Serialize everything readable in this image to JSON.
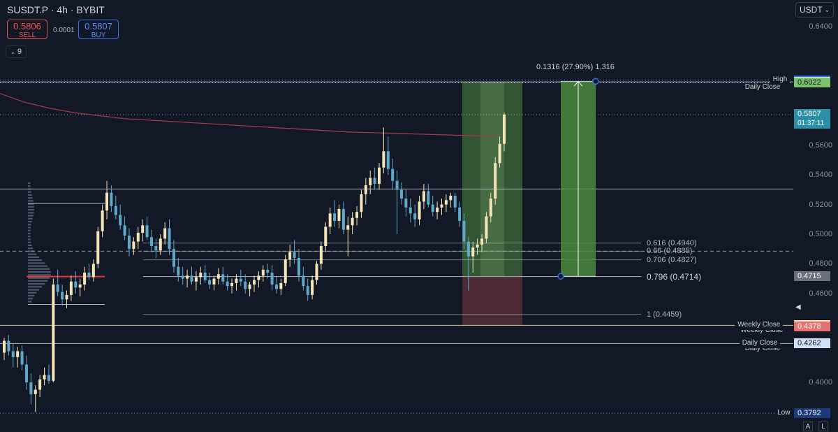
{
  "header": {
    "symbol": "SUSDT.P · 4h · BYBIT"
  },
  "trade": {
    "sell_price": "0.5806",
    "sell_label": "SELL",
    "spread": "0.0001",
    "buy_price": "0.5807",
    "buy_label": "BUY"
  },
  "indicator_count": "9",
  "currency": "USDT",
  "axis_buttons": {
    "auto": "A",
    "log": "L"
  },
  "colors": {
    "background": "#121826",
    "bull": "#f5e6b8",
    "bear": "#5fa9c8",
    "ma": "#9e3a4f",
    "long_target": "#3d6a3a",
    "long_stop": "#5a2f3a"
  },
  "chart_data": {
    "type": "candlestick",
    "ylim": [
      0.3792,
      0.643
    ],
    "yticks": [
      "0.6400",
      "0.5600",
      "0.5400",
      "0.5200",
      "0.5000",
      "0.4800",
      "0.4600",
      "0.4000"
    ],
    "series": [
      {
        "candles": [
          [
            0.42,
            0.43,
            0.415,
            0.428
          ],
          [
            0.428,
            0.432,
            0.418,
            0.421
          ],
          [
            0.421,
            0.426,
            0.41,
            0.417
          ],
          [
            0.417,
            0.424,
            0.41,
            0.421
          ],
          [
            0.421,
            0.425,
            0.408,
            0.412
          ],
          [
            0.412,
            0.418,
            0.395,
            0.4
          ],
          [
            0.4,
            0.406,
            0.385,
            0.392
          ],
          [
            0.392,
            0.398,
            0.38,
            0.395
          ],
          [
            0.395,
            0.405,
            0.39,
            0.402
          ],
          [
            0.402,
            0.41,
            0.398,
            0.405
          ],
          [
            0.405,
            0.412,
            0.399,
            0.401
          ],
          [
            0.401,
            0.47,
            0.4,
            0.466
          ],
          [
            0.466,
            0.476,
            0.458,
            0.461
          ],
          [
            0.461,
            0.466,
            0.452,
            0.456
          ],
          [
            0.456,
            0.462,
            0.45,
            0.459
          ],
          [
            0.459,
            0.472,
            0.455,
            0.468
          ],
          [
            0.468,
            0.475,
            0.46,
            0.464
          ],
          [
            0.464,
            0.47,
            0.458,
            0.466
          ],
          [
            0.466,
            0.478,
            0.462,
            0.474
          ],
          [
            0.474,
            0.48,
            0.469,
            0.471
          ],
          [
            0.471,
            0.483,
            0.468,
            0.48
          ],
          [
            0.48,
            0.505,
            0.477,
            0.502
          ],
          [
            0.502,
            0.52,
            0.498,
            0.516
          ],
          [
            0.516,
            0.536,
            0.51,
            0.528
          ],
          [
            0.528,
            0.533,
            0.515,
            0.519
          ],
          [
            0.519,
            0.526,
            0.51,
            0.513
          ],
          [
            0.513,
            0.52,
            0.503,
            0.506
          ],
          [
            0.506,
            0.512,
            0.496,
            0.499
          ],
          [
            0.499,
            0.504,
            0.485,
            0.49
          ],
          [
            0.49,
            0.498,
            0.486,
            0.495
          ],
          [
            0.495,
            0.505,
            0.49,
            0.501
          ],
          [
            0.501,
            0.51,
            0.495,
            0.506
          ],
          [
            0.506,
            0.512,
            0.496,
            0.498
          ],
          [
            0.498,
            0.503,
            0.488,
            0.492
          ],
          [
            0.492,
            0.497,
            0.484,
            0.489
          ],
          [
            0.489,
            0.5,
            0.486,
            0.497
          ],
          [
            0.497,
            0.508,
            0.493,
            0.504
          ],
          [
            0.504,
            0.51,
            0.486,
            0.49
          ],
          [
            0.49,
            0.496,
            0.474,
            0.478
          ],
          [
            0.478,
            0.484,
            0.468,
            0.472
          ],
          [
            0.472,
            0.478,
            0.466,
            0.47
          ],
          [
            0.47,
            0.476,
            0.464,
            0.472
          ],
          [
            0.472,
            0.478,
            0.466,
            0.468
          ],
          [
            0.468,
            0.475,
            0.462,
            0.471
          ],
          [
            0.471,
            0.478,
            0.466,
            0.474
          ],
          [
            0.474,
            0.479,
            0.467,
            0.469
          ],
          [
            0.469,
            0.474,
            0.463,
            0.466
          ],
          [
            0.466,
            0.472,
            0.462,
            0.47
          ],
          [
            0.47,
            0.477,
            0.466,
            0.473
          ],
          [
            0.473,
            0.478,
            0.466,
            0.468
          ],
          [
            0.468,
            0.473,
            0.462,
            0.465
          ],
          [
            0.465,
            0.47,
            0.46,
            0.467
          ],
          [
            0.467,
            0.473,
            0.462,
            0.47
          ],
          [
            0.47,
            0.476,
            0.465,
            0.468
          ],
          [
            0.468,
            0.473,
            0.46,
            0.463
          ],
          [
            0.463,
            0.468,
            0.458,
            0.466
          ],
          [
            0.466,
            0.472,
            0.461,
            0.469
          ],
          [
            0.469,
            0.475,
            0.464,
            0.472
          ],
          [
            0.472,
            0.479,
            0.468,
            0.476
          ],
          [
            0.476,
            0.48,
            0.47,
            0.474
          ],
          [
            0.474,
            0.479,
            0.462,
            0.466
          ],
          [
            0.466,
            0.472,
            0.46,
            0.463
          ],
          [
            0.463,
            0.47,
            0.459,
            0.467
          ],
          [
            0.467,
            0.486,
            0.465,
            0.483
          ],
          [
            0.483,
            0.493,
            0.478,
            0.488
          ],
          [
            0.488,
            0.496,
            0.48,
            0.484
          ],
          [
            0.484,
            0.49,
            0.468,
            0.472
          ],
          [
            0.472,
            0.478,
            0.462,
            0.465
          ],
          [
            0.465,
            0.47,
            0.455,
            0.459
          ],
          [
            0.459,
            0.472,
            0.456,
            0.469
          ],
          [
            0.469,
            0.482,
            0.466,
            0.48
          ],
          [
            0.48,
            0.495,
            0.476,
            0.492
          ],
          [
            0.492,
            0.508,
            0.488,
            0.505
          ],
          [
            0.505,
            0.518,
            0.5,
            0.514
          ],
          [
            0.514,
            0.523,
            0.505,
            0.509
          ],
          [
            0.509,
            0.52,
            0.504,
            0.517
          ],
          [
            0.517,
            0.522,
            0.5,
            0.503
          ],
          [
            0.503,
            0.512,
            0.485,
            0.506
          ],
          [
            0.506,
            0.515,
            0.5,
            0.511
          ],
          [
            0.511,
            0.519,
            0.506,
            0.515
          ],
          [
            0.515,
            0.53,
            0.511,
            0.527
          ],
          [
            0.527,
            0.538,
            0.52,
            0.533
          ],
          [
            0.533,
            0.543,
            0.527,
            0.538
          ],
          [
            0.538,
            0.545,
            0.53,
            0.534
          ],
          [
            0.534,
            0.548,
            0.53,
            0.545
          ],
          [
            0.545,
            0.572,
            0.541,
            0.556
          ],
          [
            0.556,
            0.566,
            0.54,
            0.544
          ],
          [
            0.544,
            0.551,
            0.53,
            0.536
          ],
          [
            0.536,
            0.543,
            0.5,
            0.53
          ],
          [
            0.53,
            0.535,
            0.52,
            0.524
          ],
          [
            0.524,
            0.53,
            0.512,
            0.518
          ],
          [
            0.518,
            0.524,
            0.508,
            0.514
          ],
          [
            0.514,
            0.52,
            0.505,
            0.51
          ],
          [
            0.51,
            0.526,
            0.506,
            0.522
          ],
          [
            0.522,
            0.534,
            0.517,
            0.529
          ],
          [
            0.529,
            0.534,
            0.518,
            0.52
          ],
          [
            0.52,
            0.526,
            0.512,
            0.515
          ],
          [
            0.515,
            0.522,
            0.51,
            0.518
          ],
          [
            0.518,
            0.524,
            0.513,
            0.52
          ],
          [
            0.52,
            0.527,
            0.515,
            0.523
          ],
          [
            0.523,
            0.528,
            0.518,
            0.526
          ],
          [
            0.526,
            0.528,
            0.515,
            0.518
          ],
          [
            0.518,
            0.522,
            0.505,
            0.509
          ],
          [
            0.509,
            0.514,
            0.49,
            0.495
          ],
          [
            0.495,
            0.498,
            0.462,
            0.485
          ],
          [
            0.485,
            0.495,
            0.474,
            0.491
          ],
          [
            0.491,
            0.497,
            0.486,
            0.493
          ],
          [
            0.493,
            0.5,
            0.488,
            0.497
          ],
          [
            0.497,
            0.515,
            0.494,
            0.512
          ],
          [
            0.512,
            0.528,
            0.508,
            0.524
          ],
          [
            0.524,
            0.552,
            0.52,
            0.548
          ],
          [
            0.548,
            0.566,
            0.545,
            0.561
          ],
          [
            0.561,
            0.582,
            0.556,
            0.5807
          ]
        ]
      }
    ],
    "moving_average": [
      0.595,
      0.589,
      0.585,
      0.582,
      0.58,
      0.578,
      0.577,
      0.576,
      0.575,
      0.574,
      0.573,
      0.572,
      0.571,
      0.57,
      0.569,
      0.5685,
      0.568,
      0.5675,
      0.567,
      0.5665,
      0.566
    ],
    "horizontal_lines": [
      {
        "label": "Daily Close",
        "value": 0.6028
      },
      {
        "label": "",
        "value": 0.5807
      },
      {
        "label": "",
        "value": 0.5305
      },
      {
        "label": "Weekly Close",
        "value": 0.4385
      },
      {
        "label": "Daily Close",
        "value": 0.4262
      }
    ],
    "fibonacci": [
      {
        "label": "0.616 (0.4940)",
        "value": 0.494
      },
      {
        "label": "0.66 (0.4885)",
        "value": 0.4885
      },
      {
        "label": "0.706 (0.4827)",
        "value": 0.4827
      },
      {
        "label": "0.796 (0.4714)",
        "value": 0.4714
      },
      {
        "label": "1 (0.4459)",
        "value": 0.4459
      }
    ],
    "long_position": {
      "entry": 0.4716,
      "target": 0.6028,
      "stop": 0.4385
    },
    "measure": {
      "label": "0.1316 (27.90%) 1,316",
      "from": 0.4716,
      "to": 0.6032
    },
    "volume_profile_poc": 0.4714,
    "price_tags": [
      {
        "text": "High",
        "value": "0.6041",
        "bg": "#1a3a7a",
        "fg": "#ffffff"
      },
      {
        "text": "",
        "value": "0.6032",
        "bg": "#2e6ef0",
        "fg": "#ffffff"
      },
      {
        "text": "",
        "value": "0.6028",
        "bg": "#e4e8ef",
        "fg": "#131722"
      },
      {
        "text": "",
        "value": "0.6022",
        "bg": "#7bc26a",
        "fg": "#131722"
      },
      {
        "text": "",
        "value": "0.4716",
        "bg": "#2e6ef0",
        "fg": "#ffffff"
      },
      {
        "text": "",
        "value": "0.4715",
        "bg": "#6b6f7a",
        "fg": "#ffffff"
      },
      {
        "text": "Weekly Close",
        "value": "0.4385",
        "bg": "#f5e6b8",
        "fg": "#131722"
      },
      {
        "text": "",
        "value": "0.4378",
        "bg": "#e57373",
        "fg": "#ffffff"
      },
      {
        "text": "Daily Close",
        "value": "0.4262",
        "bg": "#cfe0f7",
        "fg": "#131722"
      },
      {
        "text": "Low",
        "value": "0.3792",
        "bg": "#1a3a7a",
        "fg": "#ffffff"
      }
    ],
    "current_price": {
      "value": "0.5807",
      "countdown": "01:37:11"
    }
  }
}
